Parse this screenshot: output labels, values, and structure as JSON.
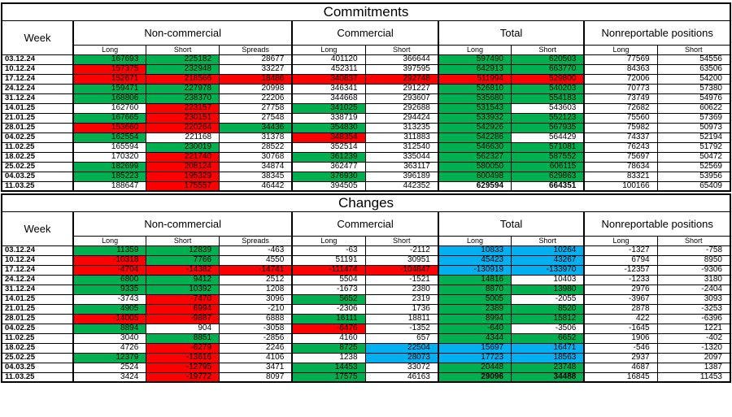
{
  "colors": {
    "g": "#00B050",
    "r": "#FF0000",
    "c": "#00B0F0",
    "w": "#FFFFFF"
  },
  "header": {
    "week_label": "Week",
    "groups": [
      "Non-commercial",
      "Commercial",
      "Total",
      "Nonreportable positions"
    ],
    "subcols": [
      "Long",
      "Short",
      "Spreads",
      "Long",
      "Short",
      "Long",
      "Short",
      "Long",
      "Short"
    ]
  },
  "commitments": {
    "title": "Commitments",
    "rows": [
      {
        "week": "03.12.24",
        "values": [
          167693,
          225182,
          28677,
          401120,
          366644,
          597490,
          620503,
          77569,
          54556
        ],
        "colors": [
          "g",
          "g",
          "w",
          "w",
          "w",
          "g",
          "g",
          "w",
          "w"
        ]
      },
      {
        "week": "10.12.24",
        "values": [
          157375,
          232948,
          33227,
          452311,
          397595,
          642913,
          663770,
          84363,
          63506
        ],
        "colors": [
          "r",
          "g",
          "w",
          "w",
          "w",
          "g",
          "g",
          "w",
          "w"
        ]
      },
      {
        "week": "17.12.24",
        "values": [
          152671,
          218566,
          18486,
          340837,
          292748,
          511994,
          529800,
          72006,
          54200
        ],
        "colors": [
          "r",
          "r",
          "r",
          "r",
          "r",
          "r",
          "r",
          "w",
          "w"
        ]
      },
      {
        "week": "24.12.24",
        "values": [
          159471,
          227978,
          20998,
          346341,
          291227,
          526810,
          540203,
          70773,
          57380
        ],
        "colors": [
          "g",
          "g",
          "w",
          "w",
          "w",
          "g",
          "g",
          "w",
          "w"
        ]
      },
      {
        "week": "31.12.24",
        "values": [
          168806,
          238370,
          22206,
          344668,
          293607,
          535680,
          554183,
          73749,
          54976
        ],
        "colors": [
          "g",
          "g",
          "w",
          "w",
          "w",
          "g",
          "g",
          "w",
          "w"
        ]
      },
      {
        "week": "14.01.25",
        "values": [
          162760,
          223157,
          27758,
          341025,
          292688,
          531543,
          543603,
          72682,
          60622
        ],
        "colors": [
          "w",
          "r",
          "w",
          "g",
          "w",
          "g",
          "w",
          "w",
          "w"
        ]
      },
      {
        "week": "21.01.25",
        "values": [
          167665,
          230151,
          27548,
          338719,
          294424,
          533932,
          552123,
          75560,
          57369
        ],
        "colors": [
          "g",
          "r",
          "w",
          "w",
          "w",
          "g",
          "g",
          "w",
          "w"
        ]
      },
      {
        "week": "28.01.25",
        "values": [
          153660,
          220264,
          34436,
          354830,
          313235,
          542926,
          567935,
          75982,
          50973
        ],
        "colors": [
          "r",
          "r",
          "g",
          "g",
          "w",
          "g",
          "g",
          "w",
          "w"
        ]
      },
      {
        "week": "04.02.25",
        "values": [
          162554,
          221168,
          31378,
          348354,
          311883,
          542286,
          564429,
          74337,
          52194
        ],
        "colors": [
          "g",
          "w",
          "w",
          "r",
          "w",
          "g",
          "w",
          "w",
          "w"
        ]
      },
      {
        "week": "11.02.25",
        "values": [
          165594,
          230019,
          28522,
          352514,
          312540,
          546630,
          571081,
          76243,
          51792
        ],
        "colors": [
          "w",
          "g",
          "w",
          "w",
          "w",
          "g",
          "g",
          "w",
          "w"
        ]
      },
      {
        "week": "18.02.25",
        "values": [
          170320,
          221740,
          30768,
          361239,
          335044,
          562327,
          587552,
          75697,
          50472
        ],
        "colors": [
          "w",
          "r",
          "w",
          "g",
          "w",
          "g",
          "g",
          "w",
          "w"
        ]
      },
      {
        "week": "25.02.25",
        "values": [
          182699,
          208124,
          34874,
          362477,
          363117,
          580050,
          606115,
          78634,
          52569
        ],
        "colors": [
          "g",
          "r",
          "w",
          "w",
          "w",
          "g",
          "g",
          "w",
          "w"
        ]
      },
      {
        "week": "04.03.25",
        "values": [
          185223,
          195329,
          38345,
          376930,
          396189,
          600498,
          629863,
          83321,
          53956
        ],
        "colors": [
          "g",
          "r",
          "w",
          "g",
          "w",
          "g",
          "g",
          "w",
          "w"
        ]
      },
      {
        "week": "11.03.25",
        "values": [
          188647,
          175557,
          46442,
          394505,
          442352,
          629594,
          664351,
          100166,
          65409
        ],
        "colors": [
          "w",
          "r",
          "w",
          "w",
          "w",
          "w",
          "w",
          "w",
          "w"
        ],
        "bold": [
          5,
          6
        ]
      }
    ]
  },
  "changes": {
    "title": "Changes",
    "rows": [
      {
        "week": "03.12.24",
        "values": [
          11359,
          12839,
          -463,
          -63,
          -2112,
          10833,
          10264,
          -1327,
          -758
        ],
        "colors": [
          "g",
          "g",
          "w",
          "w",
          "w",
          "c",
          "c",
          "w",
          "w"
        ]
      },
      {
        "week": "10.12.24",
        "values": [
          -10318,
          7766,
          4550,
          51191,
          30951,
          45423,
          43267,
          6794,
          8950
        ],
        "colors": [
          "r",
          "g",
          "w",
          "w",
          "w",
          "c",
          "c",
          "w",
          "w"
        ]
      },
      {
        "week": "17.12.24",
        "values": [
          -4704,
          -14382,
          -14741,
          -111474,
          -104847,
          -130919,
          -133970,
          -12357,
          -9306
        ],
        "colors": [
          "r",
          "r",
          "r",
          "r",
          "r",
          "c",
          "c",
          "w",
          "w"
        ]
      },
      {
        "week": "24.12.24",
        "values": [
          6800,
          9412,
          2512,
          5504,
          -1521,
          14816,
          10403,
          -1233,
          3180
        ],
        "colors": [
          "g",
          "g",
          "w",
          "w",
          "w",
          "g",
          "w",
          "w",
          "w"
        ]
      },
      {
        "week": "31.12.24",
        "values": [
          9335,
          10392,
          1208,
          -1673,
          2380,
          8870,
          13980,
          2976,
          -2404
        ],
        "colors": [
          "g",
          "g",
          "w",
          "w",
          "w",
          "g",
          "g",
          "w",
          "w"
        ]
      },
      {
        "week": "14.01.25",
        "values": [
          -3743,
          -7470,
          3096,
          5652,
          2319,
          5005,
          -2055,
          -3967,
          3093
        ],
        "colors": [
          "w",
          "r",
          "w",
          "g",
          "w",
          "g",
          "w",
          "w",
          "w"
        ]
      },
      {
        "week": "21.01.25",
        "values": [
          4905,
          6994,
          -210,
          -2306,
          1736,
          2389,
          8520,
          2878,
          -3253
        ],
        "colors": [
          "g",
          "r",
          "w",
          "w",
          "w",
          "g",
          "g",
          "w",
          "w"
        ]
      },
      {
        "week": "28.01.25",
        "values": [
          -14005,
          -9887,
          6888,
          16111,
          18811,
          8994,
          15812,
          422,
          -6396
        ],
        "colors": [
          "r",
          "r",
          "w",
          "g",
          "w",
          "g",
          "g",
          "w",
          "w"
        ]
      },
      {
        "week": "04.02.25",
        "values": [
          8894,
          904,
          -3058,
          -6476,
          -1352,
          -640,
          -3506,
          -1645,
          1221
        ],
        "colors": [
          "g",
          "w",
          "w",
          "r",
          "w",
          "g",
          "w",
          "w",
          "w"
        ]
      },
      {
        "week": "11.02.25",
        "values": [
          3040,
          8851,
          -2856,
          4160,
          657,
          4344,
          6652,
          1906,
          -402
        ],
        "colors": [
          "w",
          "g",
          "w",
          "w",
          "w",
          "g",
          "g",
          "w",
          "w"
        ]
      },
      {
        "week": "18.02.25",
        "values": [
          4726,
          -8279,
          2246,
          8725,
          22504,
          15697,
          16471,
          -546,
          -1320
        ],
        "colors": [
          "w",
          "r",
          "w",
          "g",
          "c",
          "c",
          "c",
          "w",
          "w"
        ]
      },
      {
        "week": "25.02.25",
        "values": [
          12379,
          -13616,
          4106,
          1238,
          28073,
          17723,
          18563,
          2937,
          2097
        ],
        "colors": [
          "g",
          "r",
          "w",
          "w",
          "c",
          "c",
          "c",
          "w",
          "w"
        ]
      },
      {
        "week": "04.03.25",
        "values": [
          2524,
          -12795,
          3471,
          14453,
          33072,
          20448,
          23748,
          4687,
          1387
        ],
        "colors": [
          "w",
          "r",
          "w",
          "g",
          "w",
          "g",
          "g",
          "w",
          "w"
        ]
      },
      {
        "week": "11.03.25",
        "values": [
          3424,
          -19772,
          8097,
          17575,
          46163,
          29096,
          34488,
          16845,
          11453
        ],
        "colors": [
          "w",
          "r",
          "w",
          "g",
          "w",
          "g",
          "g",
          "w",
          "w"
        ],
        "bold": [
          5,
          6
        ]
      }
    ]
  }
}
